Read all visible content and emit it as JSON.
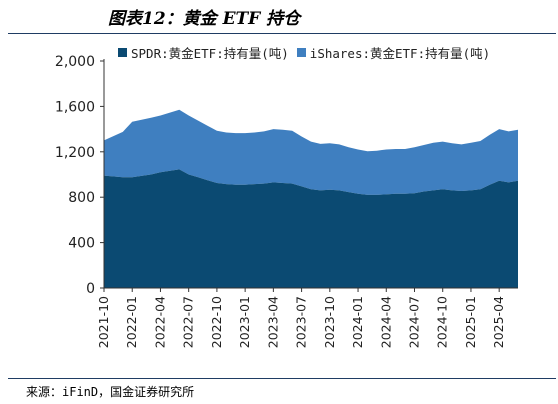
{
  "title": "图表12：黄金 ETF 持仓",
  "source": "来源：iFinD，国金证券研究所",
  "colors": {
    "spdr": "#0b4a72",
    "ishares": "#3f7fc0",
    "axis": "#333333"
  },
  "chart_data": {
    "type": "area",
    "stacked": true,
    "ylim": [
      0,
      2000
    ],
    "yticks": [
      "0",
      "400",
      "800",
      "1,200",
      "1,600",
      "2,000"
    ],
    "ytick_values": [
      0,
      400,
      800,
      1200,
      1600,
      2000
    ],
    "xticks": [
      "2021-10",
      "2022-01",
      "2022-04",
      "2022-07",
      "2022-10",
      "2023-01",
      "2023-04",
      "2023-07",
      "2023-10",
      "2024-01",
      "2024-04",
      "2024-07",
      "2024-10",
      "2025-01",
      "2025-04"
    ],
    "legend_position": "top",
    "x": [
      "2021-10",
      "2021-12",
      "2022-01",
      "2022-03",
      "2022-04",
      "2022-06",
      "2022-07",
      "2022-08",
      "2022-09",
      "2022-10",
      "2022-11",
      "2022-12",
      "2023-01",
      "2023-02",
      "2023-03",
      "2023-04",
      "2023-05",
      "2023-06",
      "2023-07",
      "2023-08",
      "2023-09",
      "2023-10",
      "2023-11",
      "2023-12",
      "2024-01",
      "2024-02",
      "2024-03",
      "2024-04",
      "2024-05",
      "2024-06",
      "2024-07",
      "2024-08",
      "2024-09",
      "2024-10",
      "2024-11",
      "2024-12",
      "2025-01",
      "2025-02",
      "2025-03",
      "2025-04",
      "2025-05",
      "2025-06"
    ],
    "series": [
      {
        "name": "SPDR:黄金ETF:持有量(吨)",
        "values": [
          990,
          975,
          975,
          1000,
          1020,
          1045,
          1000,
          975,
          950,
          925,
          915,
          910,
          910,
          915,
          920,
          930,
          925,
          920,
          895,
          870,
          860,
          865,
          860,
          845,
          830,
          820,
          820,
          825,
          830,
          830,
          835,
          850,
          860,
          870,
          860,
          855,
          860,
          870,
          910,
          945,
          930,
          945
        ]
      },
      {
        "name": "iShares:黄金ETF:持有量(吨)",
        "values": [
          310,
          400,
          490,
          500,
          500,
          525,
          520,
          500,
          480,
          460,
          455,
          455,
          455,
          455,
          460,
          470,
          470,
          465,
          440,
          420,
          410,
          410,
          405,
          395,
          390,
          385,
          390,
          395,
          395,
          395,
          405,
          410,
          420,
          420,
          415,
          410,
          420,
          425,
          440,
          455,
          450,
          450
        ]
      }
    ]
  }
}
